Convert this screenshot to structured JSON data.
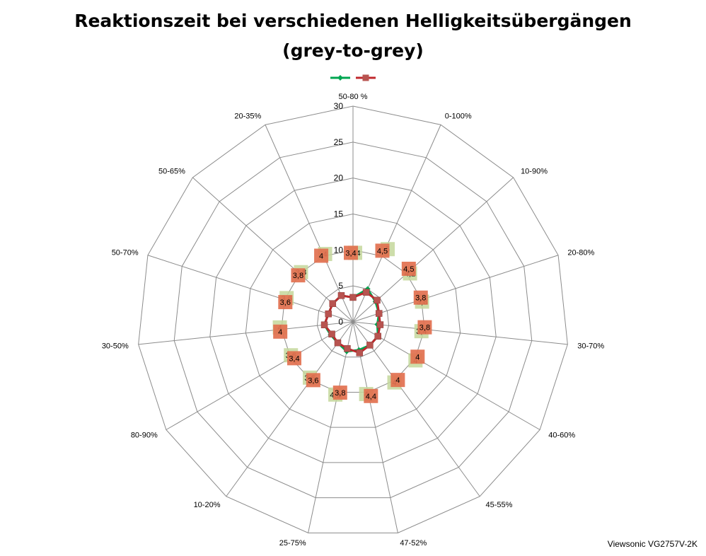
{
  "chart_data": {
    "type": "radar",
    "title": "Reaktionszeit bei verschiedenen Helligkeitsübergängen",
    "subtitle": "(grey-to-grey)",
    "categories": [
      "50-80 %",
      "0-100%",
      "10-90%",
      "20-80%",
      "30-70%",
      "40-60%",
      "45-55%",
      "47-52%",
      "25-75%",
      "10-20%",
      "80-90%",
      "30-50%",
      "50-70%",
      "50-65%",
      "20-35%"
    ],
    "rlim": [
      0,
      30
    ],
    "ticks": [
      0,
      5,
      10,
      15,
      20,
      25,
      30
    ],
    "tick_labels": [
      "0",
      "5",
      "10",
      "15",
      "20",
      "25",
      "30"
    ],
    "grid": true,
    "legend": "top",
    "series": [
      {
        "color": "#00a651",
        "marker": "diamond",
        "values": [
          3.4,
          5,
          4.2,
          3.8,
          3.4,
          4,
          4,
          4,
          4.2,
          3.6,
          3.6,
          4,
          3.6,
          3.8,
          4
        ],
        "labels": [
          "3,4",
          "5",
          "4,2",
          "3,8",
          "3,4",
          "4",
          "4",
          "4",
          "4,2",
          "3,6",
          "3,6",
          "4",
          "3,6",
          "3,8",
          "4"
        ],
        "label_color": "#c4d79b"
      },
      {
        "color": "#c0282d",
        "marker": "square",
        "values": [
          3.4,
          4.5,
          4.5,
          3.8,
          3.8,
          4,
          4,
          4.4,
          3.8,
          3.6,
          3.4,
          4,
          3.6,
          3.8,
          4
        ],
        "labels": [
          "3,4",
          "4,5",
          "4,5",
          "3,8",
          "3,8",
          "4",
          "4",
          "4,4",
          "3,8",
          "3,6",
          "3,4",
          "4",
          "3,6",
          "3,8",
          "4"
        ],
        "label_color": "#f08080"
      }
    ]
  },
  "footer": "Viewsonic VG2757V-2K"
}
